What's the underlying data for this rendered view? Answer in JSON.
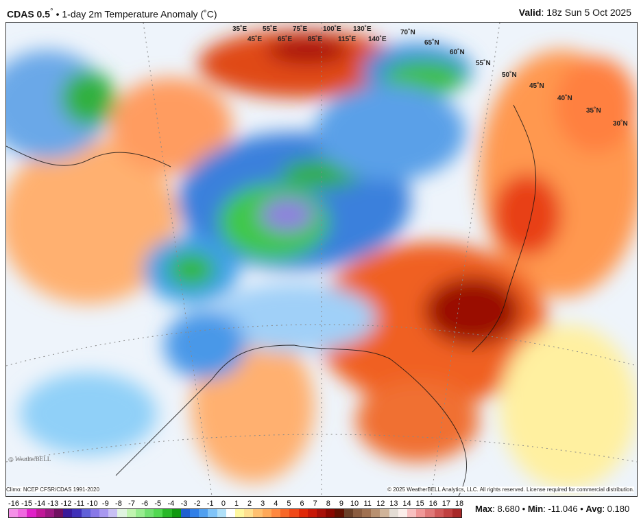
{
  "header": {
    "model": "CDAS 0.5",
    "degree": "°",
    "title": " • 1-day 2m Temperature Anomaly (˚C)",
    "valid_label": "Valid",
    "valid_value": ": 18z Sun 5 Oct 2025"
  },
  "map": {
    "lon_labels": [
      "35˚E",
      "45˚E",
      "55˚E",
      "65˚E",
      "75˚E",
      "85˚E",
      "100˚E",
      "115˚E",
      "130˚E",
      "140˚E"
    ],
    "lat_labels": [
      "70˚N",
      "65˚N",
      "60˚N",
      "55˚N",
      "50˚N",
      "45˚N",
      "40˚N",
      "35˚N",
      "30˚N"
    ],
    "logo": "WeatherBELL"
  },
  "footer": {
    "climo": "Climo: NCEP CFSR/CDAS 1991-2020",
    "copyright": "© 2025 WeatherBELL Analytics, LLC. All rights reserved. License required for commercial distribution."
  },
  "colorbar": {
    "labels": [
      "-16",
      "-15",
      "-14",
      "-13",
      "-12",
      "-11",
      "-10",
      "-9",
      "-8",
      "-7",
      "-6",
      "-5",
      "-4",
      "-3",
      "-2",
      "-1",
      "0",
      "1",
      "2",
      "3",
      "4",
      "5",
      "6",
      "7",
      "8",
      "9",
      "10",
      "11",
      "12",
      "13",
      "14",
      "15",
      "16",
      "17",
      "18"
    ],
    "colors": [
      "#f590e8",
      "#f068e0",
      "#e020c8",
      "#c01898",
      "#9a1880",
      "#701060",
      "#3a1a9a",
      "#4030b8",
      "#6060d8",
      "#8878e8",
      "#a898f0",
      "#c8c0f4",
      "#e0f4e0",
      "#c0f4b0",
      "#98ec90",
      "#70e070",
      "#50d850",
      "#28b828",
      "#109810",
      "#2060d0",
      "#3080e8",
      "#50a0f0",
      "#80c4f8",
      "#b0e0f8",
      "#ffffff",
      "#fff8a0",
      "#ffe090",
      "#ffc070",
      "#ffa858",
      "#ff8840",
      "#f86828",
      "#f04818",
      "#e02808",
      "#c81808",
      "#a81008",
      "#880800",
      "#601000",
      "#6a4028",
      "#8a5c40",
      "#a07050",
      "#b89070",
      "#d0b49a",
      "#e4dcd4",
      "#fbeeea",
      "#f8c0c0",
      "#f09898",
      "#e07878",
      "#d05858",
      "#c04040",
      "#a82828"
    ]
  },
  "stats": {
    "max_label": "Max",
    "max_value": ": 8.680",
    "min_label": "Min",
    "min_value": ": -11.046",
    "avg_label": "Avg",
    "avg_value": ": 0.180",
    "sep": " • "
  }
}
